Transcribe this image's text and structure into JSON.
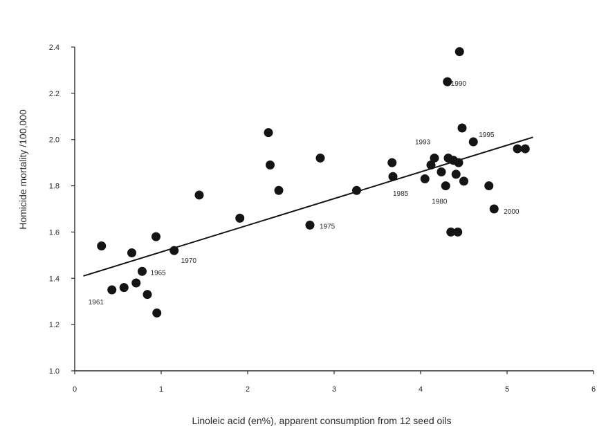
{
  "chart_data": {
    "type": "scatter",
    "xlabel": "Linoleic acid  (en%), apparent consumption from 12 seed oils",
    "ylabel": "Homicide mortality /100,000",
    "xlim": [
      0,
      6
    ],
    "ylim": [
      1.0,
      2.4
    ],
    "x_ticks": [
      "0",
      "1",
      "2",
      "3",
      "4",
      "5",
      "6"
    ],
    "y_ticks": [
      "1.0",
      "1.2",
      "1.4",
      "1.6",
      "1.8",
      "2.0",
      "2.2",
      "2.4"
    ],
    "grid": false,
    "points": [
      {
        "x": 0.31,
        "y": 1.54
      },
      {
        "x": 0.43,
        "y": 1.35
      },
      {
        "x": 0.57,
        "y": 1.36
      },
      {
        "x": 0.66,
        "y": 1.51
      },
      {
        "x": 0.71,
        "y": 1.38
      },
      {
        "x": 0.78,
        "y": 1.43
      },
      {
        "x": 0.84,
        "y": 1.33
      },
      {
        "x": 0.94,
        "y": 1.58
      },
      {
        "x": 0.95,
        "y": 1.25
      },
      {
        "x": 1.15,
        "y": 1.52
      },
      {
        "x": 1.44,
        "y": 1.76
      },
      {
        "x": 1.91,
        "y": 1.66
      },
      {
        "x": 2.24,
        "y": 2.03
      },
      {
        "x": 2.26,
        "y": 1.89
      },
      {
        "x": 2.36,
        "y": 1.78
      },
      {
        "x": 2.72,
        "y": 1.63
      },
      {
        "x": 2.84,
        "y": 1.92
      },
      {
        "x": 3.26,
        "y": 1.78
      },
      {
        "x": 3.67,
        "y": 1.9
      },
      {
        "x": 3.68,
        "y": 1.84
      },
      {
        "x": 4.05,
        "y": 1.83
      },
      {
        "x": 4.12,
        "y": 1.89
      },
      {
        "x": 4.16,
        "y": 1.92
      },
      {
        "x": 4.24,
        "y": 1.86
      },
      {
        "x": 4.29,
        "y": 1.8
      },
      {
        "x": 4.31,
        "y": 2.25
      },
      {
        "x": 4.32,
        "y": 1.92
      },
      {
        "x": 4.35,
        "y": 1.6
      },
      {
        "x": 4.38,
        "y": 1.91
      },
      {
        "x": 4.41,
        "y": 1.85
      },
      {
        "x": 4.43,
        "y": 1.6
      },
      {
        "x": 4.44,
        "y": 1.9
      },
      {
        "x": 4.45,
        "y": 2.38
      },
      {
        "x": 4.48,
        "y": 2.05
      },
      {
        "x": 4.5,
        "y": 1.82
      },
      {
        "x": 4.61,
        "y": 1.99
      },
      {
        "x": 4.79,
        "y": 1.8
      },
      {
        "x": 4.85,
        "y": 1.7
      },
      {
        "x": 5.12,
        "y": 1.96
      },
      {
        "x": 5.21,
        "y": 1.96
      }
    ],
    "annotations": [
      {
        "label": "1961",
        "x": 0.43,
        "y": 1.35
      },
      {
        "label": "1965",
        "x": 0.78,
        "y": 1.43
      },
      {
        "label": "1970",
        "x": 1.15,
        "y": 1.52
      },
      {
        "label": "1975",
        "x": 2.72,
        "y": 1.63
      },
      {
        "label": "1980",
        "x": 4.29,
        "y": 1.8
      },
      {
        "label": "1985",
        "x": 3.68,
        "y": 1.84
      },
      {
        "label": "1990",
        "x": 4.31,
        "y": 2.25
      },
      {
        "label": "1993",
        "x": 4.16,
        "y": 1.92
      },
      {
        "label": "1995",
        "x": 4.61,
        "y": 1.99
      },
      {
        "label": "2000",
        "x": 4.85,
        "y": 1.7
      }
    ],
    "trendline": {
      "x": [
        0.1,
        5.3
      ],
      "y": [
        1.41,
        2.01
      ]
    }
  }
}
